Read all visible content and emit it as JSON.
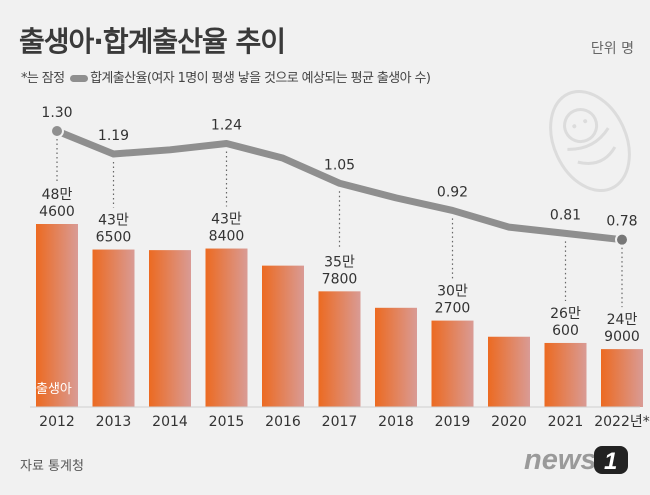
{
  "title": "출생아·합계출산율 추이",
  "unit_label": "단위 명",
  "legend": {
    "note": "*는 잠정",
    "line_series": "합계출산율(여자 1명이 평생 낳을 것으로 예상되는 평균 출생아 수)"
  },
  "source": "자료 통계청",
  "logo_text": "news1",
  "colors": {
    "bar_top": "#ec6a21",
    "bar_bottom": "#d99b95",
    "line": "#8f8f8f",
    "background": "#f1f1f1"
  },
  "chart_data": {
    "type": "bar+line",
    "categories": [
      "2012",
      "2013",
      "2014",
      "2015",
      "2016",
      "2017",
      "2018",
      "2019",
      "2020",
      "2021",
      "2022년*"
    ],
    "series": [
      {
        "name": "출생아",
        "type": "bar",
        "values": [
          484600,
          436500,
          435400,
          438400,
          406200,
          357800,
          326800,
          302700,
          272300,
          260600,
          249000
        ],
        "labels": [
          [
            "48만",
            "4600"
          ],
          [
            "43만",
            "6500"
          ],
          null,
          [
            "43만",
            "8400"
          ],
          null,
          [
            "35만",
            "7800"
          ],
          null,
          [
            "30만",
            "2700"
          ],
          null,
          [
            "26만",
            "600"
          ],
          [
            "24만",
            "9000"
          ]
        ]
      },
      {
        "name": "합계출산율",
        "type": "line",
        "values": [
          1.3,
          1.19,
          1.21,
          1.24,
          1.17,
          1.05,
          0.98,
          0.92,
          0.84,
          0.81,
          0.78
        ],
        "labels": [
          "1.30",
          "1.19",
          null,
          "1.24",
          null,
          "1.05",
          null,
          "0.92",
          null,
          "0.81",
          "0.78"
        ]
      }
    ],
    "bar_series_label": "출생아"
  }
}
